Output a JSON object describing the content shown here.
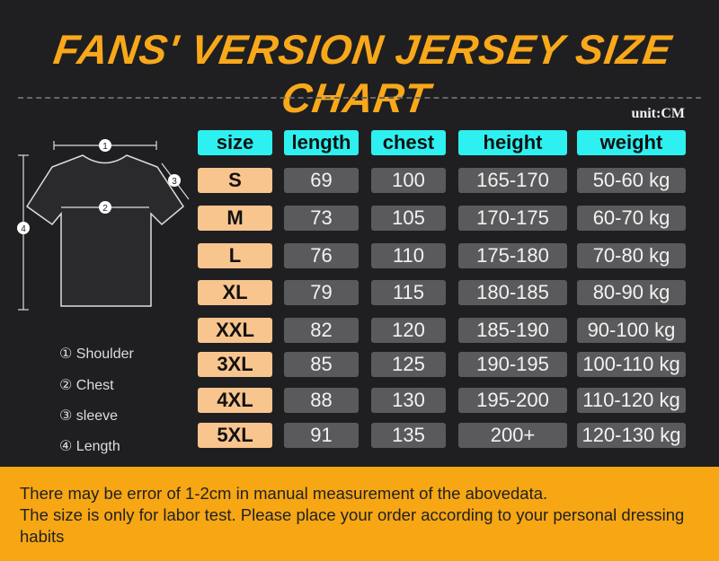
{
  "title": "FANS' VERSION JERSEY SIZE CHART",
  "unit": "unit:CM",
  "headers": [
    "size",
    "length",
    "chest",
    "height",
    "weight"
  ],
  "rows": [
    [
      "S",
      "69",
      "100",
      "165-170",
      "50-60 kg"
    ],
    [
      "M",
      "73",
      "105",
      "170-175",
      "60-70 kg"
    ],
    [
      "L",
      "76",
      "110",
      "175-180",
      "70-80 kg"
    ],
    [
      "XL",
      "79",
      "115",
      "180-185",
      "80-90 kg"
    ],
    [
      "XXL",
      "82",
      "120",
      "185-190",
      "90-100 kg"
    ],
    [
      "3XL",
      "85",
      "125",
      "190-195",
      "100-110 kg"
    ],
    [
      "4XL",
      "88",
      "130",
      "195-200",
      "110-120 kg"
    ],
    [
      "5XL",
      "91",
      "135",
      "200+",
      "120-130 kg"
    ]
  ],
  "legend": [
    "① Shoulder",
    "② Chest",
    "③ sleeve",
    "④ Length"
  ],
  "markers": [
    "1",
    "2",
    "3",
    "4"
  ],
  "notes": [
    "There may be error of 1-2cm in manual measurement of the abovedata.",
    "The size is only for labor test. Please place your order according to your personal dressing habits"
  ],
  "colors": {
    "accent": "#f9a81a",
    "header": "#2ef0f0",
    "size": "#f8c58e",
    "cell": "#5a5a5c",
    "banner": "#f7a614"
  }
}
